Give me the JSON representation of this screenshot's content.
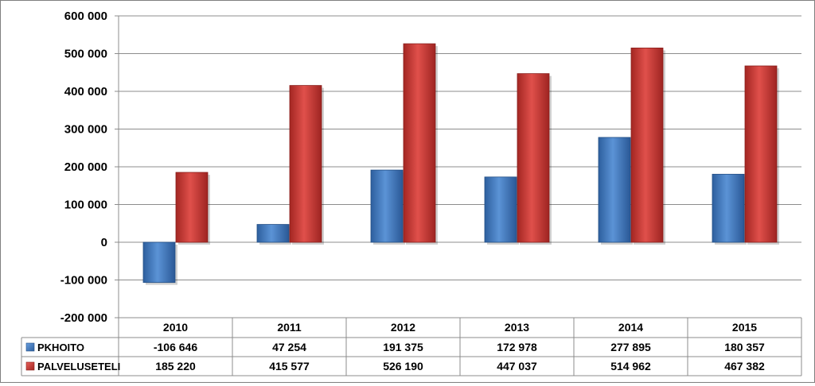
{
  "chart_data": {
    "type": "bar",
    "categories": [
      "2010",
      "2011",
      "2012",
      "2013",
      "2014",
      "2015"
    ],
    "series": [
      {
        "name": "PKHOITO",
        "color": "#4a7ebb",
        "values": [
          -106646,
          47254,
          191375,
          172978,
          277895,
          180357
        ],
        "labels": [
          "-106 646",
          "47 254",
          "191 375",
          "172 978",
          "277 895",
          "180 357"
        ]
      },
      {
        "name": "PALVELUSETELI",
        "color": "#c0392b",
        "values": [
          185220,
          415577,
          526190,
          447037,
          514962,
          467382
        ],
        "labels": [
          "185 220",
          "415 577",
          "526 190",
          "447 037",
          "514 962",
          "467 382"
        ]
      }
    ],
    "yticks": [
      600000,
      500000,
      400000,
      300000,
      200000,
      100000,
      0,
      -100000,
      -200000
    ],
    "ytick_labels": [
      "600 000",
      "500 000",
      "400 000",
      "300 000",
      "200 000",
      "100 000",
      "0",
      "-100 000",
      "-200 000"
    ],
    "ylim": [
      -200000,
      600000
    ],
    "grid": true,
    "legend": "data-table",
    "title": "",
    "xlabel": "",
    "ylabel": ""
  }
}
